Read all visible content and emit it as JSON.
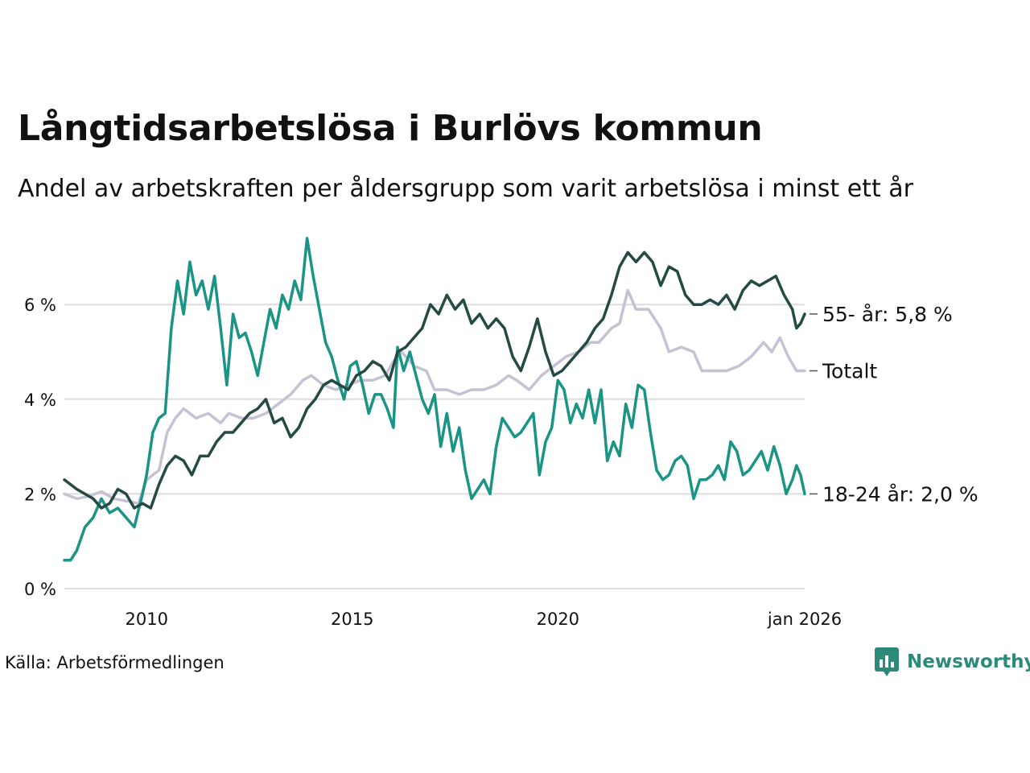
{
  "title": "Långtidsarbetslösa i Burlövs kommun",
  "subtitle": "Andel av arbetskraften per åldersgrupp som varit arbetslösa i minst ett år",
  "source": "Källa: Arbetsförmedlingen",
  "brand": {
    "name": "Newsworthy",
    "icon": "bar-chart-logo-icon",
    "color": "#2b8a78"
  },
  "chart_data": {
    "type": "line",
    "x_range": [
      2008.0,
      2026.0
    ],
    "ylim": [
      0,
      7.5
    ],
    "x_ticks": [
      {
        "value": 2010.0,
        "label": "2010"
      },
      {
        "value": 2015.0,
        "label": "2015"
      },
      {
        "value": 2020.0,
        "label": "2020"
      },
      {
        "value": 2026.0,
        "label": "jan 2026"
      }
    ],
    "y_ticks": [
      {
        "value": 0,
        "label": "0 %"
      },
      {
        "value": 2,
        "label": "2 %"
      },
      {
        "value": 4,
        "label": "4 %"
      },
      {
        "value": 6,
        "label": "6 %"
      }
    ],
    "grid": true,
    "series": [
      {
        "end_label": "Totalt",
        "color": "#c5c2d4",
        "points": [
          [
            2008.0,
            2.0
          ],
          [
            2008.3,
            1.9
          ],
          [
            2008.6,
            1.95
          ],
          [
            2008.9,
            2.05
          ],
          [
            2009.2,
            1.9
          ],
          [
            2009.5,
            1.85
          ],
          [
            2009.8,
            1.8
          ],
          [
            2010.0,
            2.3
          ],
          [
            2010.3,
            2.5
          ],
          [
            2010.5,
            3.3
          ],
          [
            2010.7,
            3.6
          ],
          [
            2010.9,
            3.8
          ],
          [
            2011.2,
            3.6
          ],
          [
            2011.5,
            3.7
          ],
          [
            2011.8,
            3.5
          ],
          [
            2012.0,
            3.7
          ],
          [
            2012.3,
            3.6
          ],
          [
            2012.6,
            3.6
          ],
          [
            2012.9,
            3.7
          ],
          [
            2013.2,
            3.9
          ],
          [
            2013.5,
            4.1
          ],
          [
            2013.8,
            4.4
          ],
          [
            2014.0,
            4.5
          ],
          [
            2014.3,
            4.3
          ],
          [
            2014.6,
            4.2
          ],
          [
            2014.9,
            4.3
          ],
          [
            2015.2,
            4.4
          ],
          [
            2015.5,
            4.4
          ],
          [
            2015.8,
            4.5
          ],
          [
            2016.0,
            4.8
          ],
          [
            2016.2,
            5.0
          ],
          [
            2016.5,
            4.7
          ],
          [
            2016.8,
            4.6
          ],
          [
            2017.0,
            4.2
          ],
          [
            2017.3,
            4.2
          ],
          [
            2017.6,
            4.1
          ],
          [
            2017.9,
            4.2
          ],
          [
            2018.2,
            4.2
          ],
          [
            2018.5,
            4.3
          ],
          [
            2018.8,
            4.5
          ],
          [
            2019.0,
            4.4
          ],
          [
            2019.3,
            4.2
          ],
          [
            2019.6,
            4.5
          ],
          [
            2019.9,
            4.7
          ],
          [
            2020.2,
            4.9
          ],
          [
            2020.5,
            5.0
          ],
          [
            2020.8,
            5.2
          ],
          [
            2021.0,
            5.2
          ],
          [
            2021.3,
            5.5
          ],
          [
            2021.5,
            5.6
          ],
          [
            2021.7,
            6.3
          ],
          [
            2021.9,
            5.9
          ],
          [
            2022.2,
            5.9
          ],
          [
            2022.5,
            5.5
          ],
          [
            2022.7,
            5.0
          ],
          [
            2023.0,
            5.1
          ],
          [
            2023.3,
            5.0
          ],
          [
            2023.5,
            4.6
          ],
          [
            2023.8,
            4.6
          ],
          [
            2024.1,
            4.6
          ],
          [
            2024.4,
            4.7
          ],
          [
            2024.7,
            4.9
          ],
          [
            2025.0,
            5.2
          ],
          [
            2025.2,
            5.0
          ],
          [
            2025.4,
            5.3
          ],
          [
            2025.6,
            4.9
          ],
          [
            2025.8,
            4.6
          ],
          [
            2026.0,
            4.6
          ]
        ]
      },
      {
        "end_label": "18-24 år: 2,0 %",
        "color": "#1a9484",
        "points": [
          [
            2008.0,
            0.6
          ],
          [
            2008.15,
            0.6
          ],
          [
            2008.3,
            0.8
          ],
          [
            2008.5,
            1.3
          ],
          [
            2008.7,
            1.5
          ],
          [
            2008.9,
            1.9
          ],
          [
            2009.1,
            1.6
          ],
          [
            2009.3,
            1.7
          ],
          [
            2009.5,
            1.5
          ],
          [
            2009.7,
            1.3
          ],
          [
            2009.9,
            2.0
          ],
          [
            2010.0,
            2.4
          ],
          [
            2010.15,
            3.3
          ],
          [
            2010.3,
            3.6
          ],
          [
            2010.45,
            3.7
          ],
          [
            2010.6,
            5.5
          ],
          [
            2010.75,
            6.5
          ],
          [
            2010.9,
            5.8
          ],
          [
            2011.05,
            6.9
          ],
          [
            2011.2,
            6.2
          ],
          [
            2011.35,
            6.5
          ],
          [
            2011.5,
            5.9
          ],
          [
            2011.65,
            6.6
          ],
          [
            2011.8,
            5.5
          ],
          [
            2011.95,
            4.3
          ],
          [
            2012.1,
            5.8
          ],
          [
            2012.25,
            5.3
          ],
          [
            2012.4,
            5.4
          ],
          [
            2012.55,
            5.0
          ],
          [
            2012.7,
            4.5
          ],
          [
            2012.85,
            5.2
          ],
          [
            2013.0,
            5.9
          ],
          [
            2013.15,
            5.5
          ],
          [
            2013.3,
            6.2
          ],
          [
            2013.45,
            5.9
          ],
          [
            2013.6,
            6.5
          ],
          [
            2013.75,
            6.1
          ],
          [
            2013.9,
            7.4
          ],
          [
            2014.05,
            6.6
          ],
          [
            2014.2,
            5.9
          ],
          [
            2014.35,
            5.2
          ],
          [
            2014.5,
            4.9
          ],
          [
            2014.65,
            4.4
          ],
          [
            2014.8,
            4.0
          ],
          [
            2014.95,
            4.7
          ],
          [
            2015.1,
            4.8
          ],
          [
            2015.25,
            4.3
          ],
          [
            2015.4,
            3.7
          ],
          [
            2015.55,
            4.1
          ],
          [
            2015.7,
            4.1
          ],
          [
            2015.85,
            3.8
          ],
          [
            2016.0,
            3.4
          ],
          [
            2016.1,
            5.1
          ],
          [
            2016.25,
            4.6
          ],
          [
            2016.4,
            5.0
          ],
          [
            2016.55,
            4.5
          ],
          [
            2016.7,
            4.0
          ],
          [
            2016.85,
            3.7
          ],
          [
            2017.0,
            4.1
          ],
          [
            2017.15,
            3.0
          ],
          [
            2017.3,
            3.7
          ],
          [
            2017.45,
            2.9
          ],
          [
            2017.6,
            3.4
          ],
          [
            2017.75,
            2.5
          ],
          [
            2017.9,
            1.9
          ],
          [
            2018.05,
            2.1
          ],
          [
            2018.2,
            2.3
          ],
          [
            2018.35,
            2.0
          ],
          [
            2018.5,
            3.0
          ],
          [
            2018.65,
            3.6
          ],
          [
            2018.8,
            3.4
          ],
          [
            2018.95,
            3.2
          ],
          [
            2019.1,
            3.3
          ],
          [
            2019.25,
            3.5
          ],
          [
            2019.4,
            3.7
          ],
          [
            2019.55,
            2.4
          ],
          [
            2019.7,
            3.1
          ],
          [
            2019.85,
            3.4
          ],
          [
            2020.0,
            4.4
          ],
          [
            2020.15,
            4.2
          ],
          [
            2020.3,
            3.5
          ],
          [
            2020.45,
            3.9
          ],
          [
            2020.6,
            3.6
          ],
          [
            2020.75,
            4.2
          ],
          [
            2020.9,
            3.5
          ],
          [
            2021.05,
            4.2
          ],
          [
            2021.2,
            2.7
          ],
          [
            2021.35,
            3.1
          ],
          [
            2021.5,
            2.8
          ],
          [
            2021.65,
            3.9
          ],
          [
            2021.8,
            3.4
          ],
          [
            2021.95,
            4.3
          ],
          [
            2022.1,
            4.2
          ],
          [
            2022.25,
            3.3
          ],
          [
            2022.4,
            2.5
          ],
          [
            2022.55,
            2.3
          ],
          [
            2022.7,
            2.4
          ],
          [
            2022.85,
            2.7
          ],
          [
            2023.0,
            2.8
          ],
          [
            2023.15,
            2.6
          ],
          [
            2023.3,
            1.9
          ],
          [
            2023.45,
            2.3
          ],
          [
            2023.6,
            2.3
          ],
          [
            2023.75,
            2.4
          ],
          [
            2023.9,
            2.6
          ],
          [
            2024.05,
            2.3
          ],
          [
            2024.2,
            3.1
          ],
          [
            2024.35,
            2.9
          ],
          [
            2024.5,
            2.4
          ],
          [
            2024.65,
            2.5
          ],
          [
            2024.8,
            2.7
          ],
          [
            2024.95,
            2.9
          ],
          [
            2025.1,
            2.5
          ],
          [
            2025.25,
            3.0
          ],
          [
            2025.4,
            2.6
          ],
          [
            2025.55,
            2.0
          ],
          [
            2025.7,
            2.3
          ],
          [
            2025.8,
            2.6
          ],
          [
            2025.9,
            2.4
          ],
          [
            2026.0,
            2.0
          ]
        ]
      },
      {
        "end_label": "55- år: 5,8 %",
        "color": "#254a44",
        "points": [
          [
            2008.0,
            2.3
          ],
          [
            2008.15,
            2.2
          ],
          [
            2008.3,
            2.1
          ],
          [
            2008.5,
            2.0
          ],
          [
            2008.7,
            1.9
          ],
          [
            2008.9,
            1.7
          ],
          [
            2009.1,
            1.8
          ],
          [
            2009.3,
            2.1
          ],
          [
            2009.5,
            2.0
          ],
          [
            2009.7,
            1.7
          ],
          [
            2009.9,
            1.8
          ],
          [
            2010.1,
            1.7
          ],
          [
            2010.3,
            2.2
          ],
          [
            2010.5,
            2.6
          ],
          [
            2010.7,
            2.8
          ],
          [
            2010.9,
            2.7
          ],
          [
            2011.1,
            2.4
          ],
          [
            2011.3,
            2.8
          ],
          [
            2011.5,
            2.8
          ],
          [
            2011.7,
            3.1
          ],
          [
            2011.9,
            3.3
          ],
          [
            2012.1,
            3.3
          ],
          [
            2012.3,
            3.5
          ],
          [
            2012.5,
            3.7
          ],
          [
            2012.7,
            3.8
          ],
          [
            2012.9,
            4.0
          ],
          [
            2013.1,
            3.5
          ],
          [
            2013.3,
            3.6
          ],
          [
            2013.5,
            3.2
          ],
          [
            2013.7,
            3.4
          ],
          [
            2013.9,
            3.8
          ],
          [
            2014.1,
            4.0
          ],
          [
            2014.3,
            4.3
          ],
          [
            2014.5,
            4.4
          ],
          [
            2014.7,
            4.3
          ],
          [
            2014.9,
            4.2
          ],
          [
            2015.1,
            4.5
          ],
          [
            2015.3,
            4.6
          ],
          [
            2015.5,
            4.8
          ],
          [
            2015.7,
            4.7
          ],
          [
            2015.9,
            4.4
          ],
          [
            2016.1,
            5.0
          ],
          [
            2016.3,
            5.1
          ],
          [
            2016.5,
            5.3
          ],
          [
            2016.7,
            5.5
          ],
          [
            2016.9,
            6.0
          ],
          [
            2017.1,
            5.8
          ],
          [
            2017.3,
            6.2
          ],
          [
            2017.5,
            5.9
          ],
          [
            2017.7,
            6.1
          ],
          [
            2017.9,
            5.6
          ],
          [
            2018.1,
            5.8
          ],
          [
            2018.3,
            5.5
          ],
          [
            2018.5,
            5.7
          ],
          [
            2018.7,
            5.5
          ],
          [
            2018.9,
            4.9
          ],
          [
            2019.1,
            4.6
          ],
          [
            2019.3,
            5.1
          ],
          [
            2019.5,
            5.7
          ],
          [
            2019.7,
            5.0
          ],
          [
            2019.9,
            4.5
          ],
          [
            2020.1,
            4.6
          ],
          [
            2020.3,
            4.8
          ],
          [
            2020.5,
            5.0
          ],
          [
            2020.7,
            5.2
          ],
          [
            2020.9,
            5.5
          ],
          [
            2021.1,
            5.7
          ],
          [
            2021.3,
            6.2
          ],
          [
            2021.5,
            6.8
          ],
          [
            2021.7,
            7.1
          ],
          [
            2021.9,
            6.9
          ],
          [
            2022.1,
            7.1
          ],
          [
            2022.3,
            6.9
          ],
          [
            2022.5,
            6.4
          ],
          [
            2022.7,
            6.8
          ],
          [
            2022.9,
            6.7
          ],
          [
            2023.1,
            6.2
          ],
          [
            2023.3,
            6.0
          ],
          [
            2023.5,
            6.0
          ],
          [
            2023.7,
            6.1
          ],
          [
            2023.9,
            6.0
          ],
          [
            2024.1,
            6.2
          ],
          [
            2024.3,
            5.9
          ],
          [
            2024.5,
            6.3
          ],
          [
            2024.7,
            6.5
          ],
          [
            2024.9,
            6.4
          ],
          [
            2025.1,
            6.5
          ],
          [
            2025.3,
            6.6
          ],
          [
            2025.5,
            6.2
          ],
          [
            2025.7,
            5.9
          ],
          [
            2025.8,
            5.5
          ],
          [
            2025.9,
            5.6
          ],
          [
            2026.0,
            5.8
          ]
        ]
      }
    ]
  }
}
